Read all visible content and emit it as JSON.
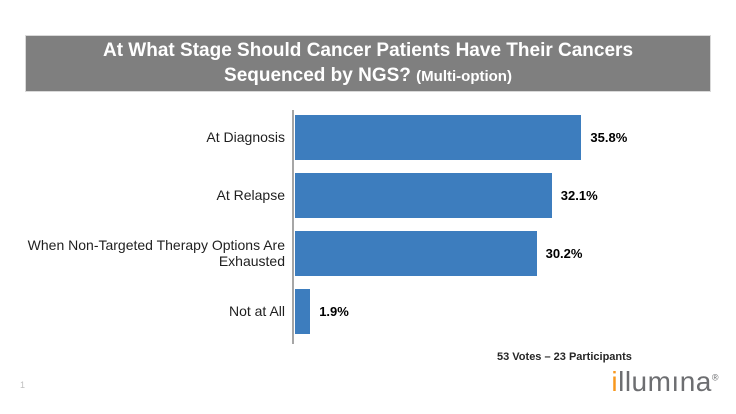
{
  "slide": {
    "page_number": "1",
    "title": {
      "line1": "At What Stage Should Cancer Patients Have Their Cancers",
      "line2_main": "Sequenced by NGS?",
      "line2_note": "(Multi-option)"
    },
    "footer": {
      "votes_text": "53 Votes – 23 Participants"
    },
    "brand": {
      "logo_i": "i",
      "logo_rest": "llumına",
      "logo_mark": "®"
    }
  },
  "chart_data": {
    "type": "bar",
    "orientation": "horizontal",
    "title": "At What Stage Should Cancer Patients Have Their Cancers Sequenced by NGS? (Multi-option)",
    "categories": [
      "At Diagnosis",
      "At Relapse",
      "When Non-Targeted Therapy Options Are Exhausted",
      "Not at All"
    ],
    "values": [
      35.8,
      32.1,
      30.2,
      1.9
    ],
    "value_labels": [
      "35.8%",
      "32.1%",
      "30.2%",
      "1.9%"
    ],
    "xlabel": "",
    "ylabel": "",
    "xlim": [
      0,
      40
    ],
    "grid": false,
    "legend": false,
    "annotation": "53 Votes – 23 Participants",
    "bar_color": "#3D7DBE",
    "axis_color": "#A6A6A6"
  },
  "colors": {
    "banner_bg": "#7F7F7F",
    "banner_text": "#FFFFFF",
    "bar_blue": "#3D7DBE",
    "axis_gray": "#A6A6A6",
    "logo_gray": "#6D6E71",
    "logo_orange": "#F8981D"
  }
}
